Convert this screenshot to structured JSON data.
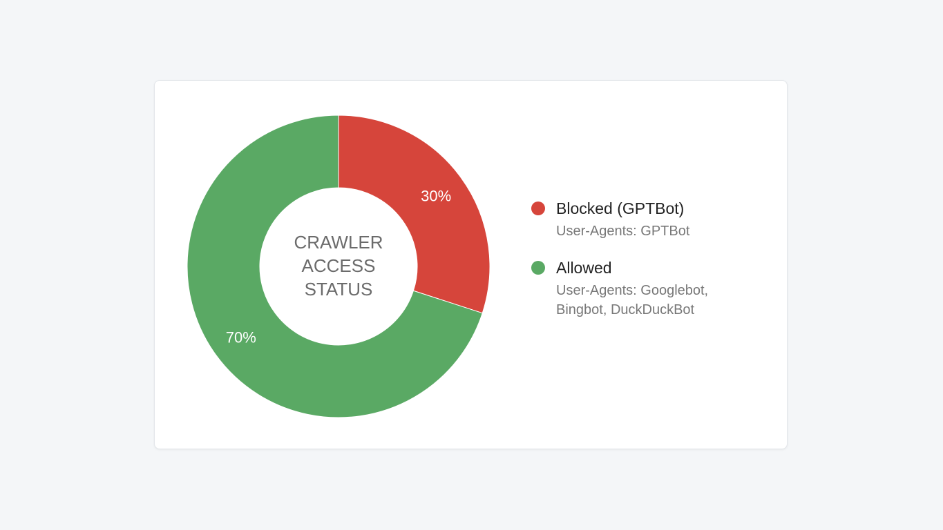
{
  "chart_data": {
    "type": "pie",
    "center_label_lines": [
      "CRAWLER",
      "ACCESS",
      "STATUS"
    ],
    "slices": [
      {
        "name": "Blocked (GPTBot)",
        "value": 30,
        "label": "30%",
        "color": "#d6453b",
        "desc": "User-Agents: GPTBot"
      },
      {
        "name": "Allowed",
        "value": 70,
        "label": "70%",
        "color": "#5aa964",
        "desc": "User-Agents: Googlebot, Bingbot, DuckDuckBot"
      }
    ],
    "legend_position": "right"
  }
}
